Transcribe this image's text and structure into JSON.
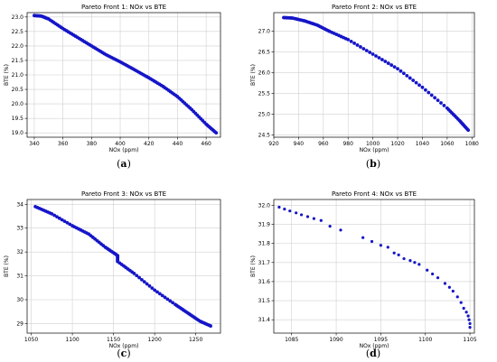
{
  "chart_data": [
    {
      "type": "scatter",
      "title": "Pareto Front 1: NOx vs BTE",
      "xlabel": "NOx (ppm)",
      "ylabel": "BTE (%)",
      "caption": "a",
      "xlim": [
        335,
        470
      ],
      "ylim": [
        18.85,
        23.15
      ],
      "xticks": [
        340,
        360,
        380,
        400,
        420,
        440,
        460
      ],
      "yticks": [
        19.0,
        19.5,
        20.0,
        20.5,
        21.0,
        21.5,
        22.0,
        22.5,
        23.0
      ],
      "ytick_labels": [
        "19.0",
        "19.5",
        "20.0",
        "20.5",
        "21.0",
        "21.5",
        "22.0",
        "22.5",
        "23.0"
      ],
      "grid": true,
      "color": "#1515c8",
      "x": [
        340,
        345,
        350,
        360,
        370,
        380,
        390,
        400,
        410,
        420,
        430,
        440,
        450,
        460,
        467
      ],
      "y": [
        23.05,
        23.03,
        22.93,
        22.6,
        22.3,
        22.0,
        21.7,
        21.45,
        21.18,
        20.9,
        20.6,
        20.25,
        19.8,
        19.3,
        19.0
      ]
    },
    {
      "type": "scatter",
      "title": "Pareto Front 2: NOx vs BTE",
      "xlabel": "NOx (ppm)",
      "ylabel": "BTE (%)",
      "caption": "b",
      "xlim": [
        920,
        1082
      ],
      "ylim": [
        24.45,
        27.45
      ],
      "xticks": [
        920,
        940,
        960,
        980,
        1000,
        1020,
        1040,
        1060,
        1080
      ],
      "yticks": [
        24.5,
        25.0,
        25.5,
        26.0,
        26.5,
        27.0
      ],
      "ytick_labels": [
        "24.5",
        "25.0",
        "25.5",
        "26.0",
        "26.5",
        "27.0"
      ],
      "grid": true,
      "color": "#1515c8",
      "x": [
        928,
        935,
        945,
        955,
        965,
        980,
        1000,
        1020,
        1040,
        1060,
        1070,
        1077
      ],
      "y": [
        27.33,
        27.32,
        27.25,
        27.15,
        27.0,
        26.8,
        26.45,
        26.1,
        25.65,
        25.15,
        24.85,
        24.62
      ]
    },
    {
      "type": "scatter",
      "title": "Pareto Front 3: NOx vs BTE",
      "xlabel": "NOx (ppm)",
      "ylabel": "BTE (%)",
      "caption": "c",
      "xlim": [
        1045,
        1280
      ],
      "ylim": [
        28.6,
        34.2
      ],
      "xticks": [
        1050,
        1100,
        1150,
        1200,
        1250
      ],
      "yticks": [
        29,
        30,
        31,
        32,
        33,
        34
      ],
      "ytick_labels": [
        "29",
        "30",
        "31",
        "32",
        "33",
        "34"
      ],
      "grid": true,
      "color": "#1515c8",
      "x": [
        1055,
        1075,
        1100,
        1120,
        1140,
        1155,
        1155,
        1175,
        1200,
        1225,
        1240,
        1255,
        1268
      ],
      "y": [
        33.9,
        33.6,
        33.1,
        32.75,
        32.2,
        31.85,
        31.6,
        31.1,
        30.4,
        29.8,
        29.45,
        29.1,
        28.9
      ]
    },
    {
      "type": "scatter",
      "title": "Pareto Front 4: NOx vs BTE",
      "xlabel": "NOx (ppm)",
      "ylabel": "BTE (%)",
      "caption": "d",
      "xlim": [
        1083,
        1105.5
      ],
      "ylim": [
        31.33,
        32.03
      ],
      "xticks": [
        1085,
        1090,
        1095,
        1100,
        1105
      ],
      "yticks": [
        31.4,
        31.5,
        31.6,
        31.7,
        31.8,
        31.9,
        32.0
      ],
      "ytick_labels": [
        "31.4",
        "31.5",
        "31.6",
        "31.7",
        "31.8",
        "31.9",
        "32.0"
      ],
      "grid": true,
      "color": "#1515c8",
      "x": [
        1083.6,
        1084.2,
        1084.8,
        1085.5,
        1086.1,
        1086.8,
        1087.5,
        1088.3,
        1089.3,
        1090.5,
        1093.0,
        1094.0,
        1095.0,
        1095.8,
        1096.5,
        1097.0,
        1097.6,
        1098.3,
        1098.8,
        1099.3,
        1100.2,
        1100.8,
        1101.4,
        1102.2,
        1102.7,
        1103.1,
        1103.6,
        1104.0,
        1104.3,
        1104.6,
        1104.8,
        1104.9,
        1105.0,
        1105.0
      ],
      "y": [
        31.99,
        31.98,
        31.97,
        31.96,
        31.95,
        31.94,
        31.93,
        31.92,
        31.89,
        31.87,
        31.83,
        31.81,
        31.79,
        31.78,
        31.75,
        31.74,
        31.72,
        31.71,
        31.7,
        31.69,
        31.66,
        31.64,
        31.62,
        31.59,
        31.57,
        31.55,
        31.52,
        31.49,
        31.46,
        31.44,
        31.42,
        31.4,
        31.38,
        31.36
      ]
    }
  ]
}
